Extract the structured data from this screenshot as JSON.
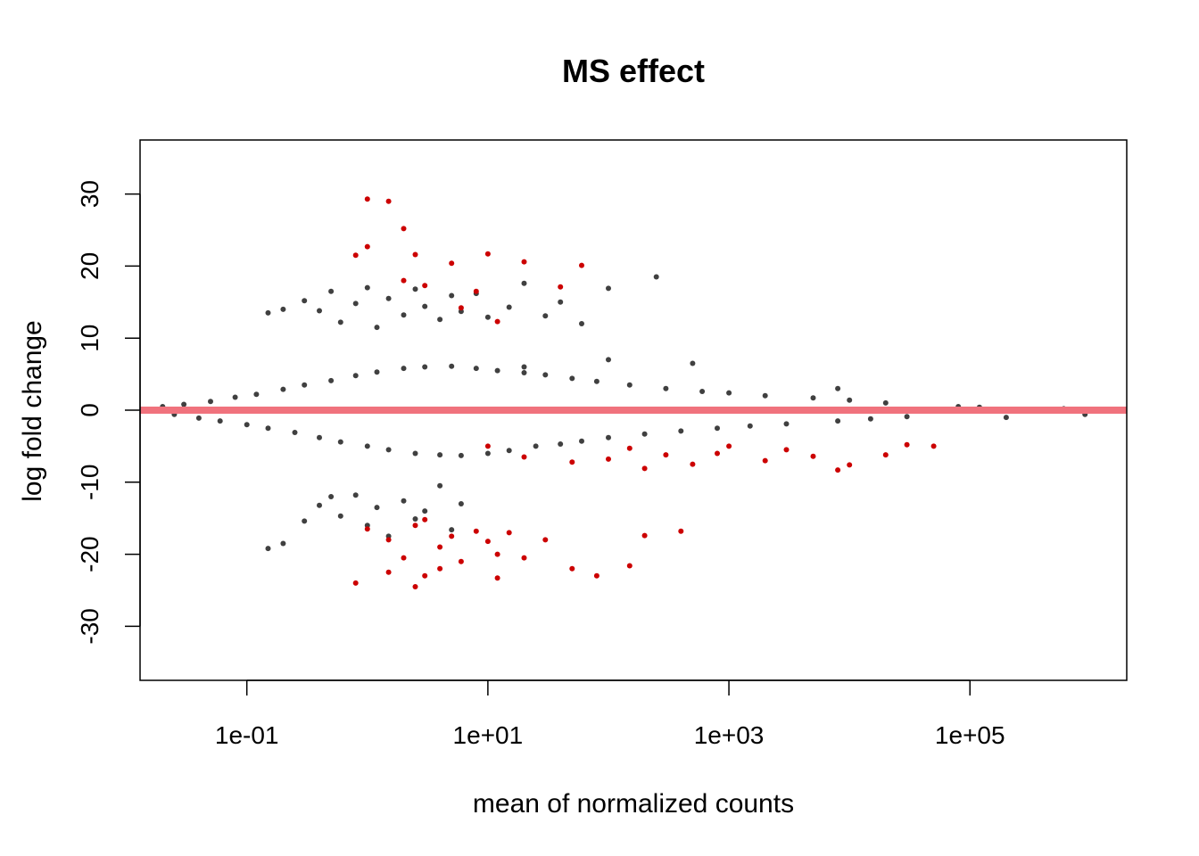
{
  "chart_data": {
    "type": "scatter",
    "title": "MS effect",
    "xlabel": "mean of normalized counts",
    "ylabel": "log fold change",
    "x_scale": "log10",
    "xlim": [
      0.013,
      2000000
    ],
    "ylim": [
      -37.5,
      37.5
    ],
    "x_ticks": [
      {
        "value": 0.1,
        "label": "1e-01"
      },
      {
        "value": 10,
        "label": "1e+01"
      },
      {
        "value": 1000,
        "label": "1e+03"
      },
      {
        "value": 100000,
        "label": "1e+05"
      }
    ],
    "y_ticks": [
      {
        "value": -30,
        "label": "-30"
      },
      {
        "value": -20,
        "label": "-20"
      },
      {
        "value": -10,
        "label": "-10"
      },
      {
        "value": 0,
        "label": "0"
      },
      {
        "value": 10,
        "label": "10"
      },
      {
        "value": 20,
        "label": "20"
      },
      {
        "value": 30,
        "label": "30"
      }
    ],
    "reference_line": {
      "y": 0,
      "color": "#f0727d"
    },
    "grid": false,
    "colors": {
      "not_significant": "#404040",
      "significant": "#cc0000"
    },
    "series": [
      {
        "color": "#404040",
        "points": [
          [
            0.02,
            0.5
          ],
          [
            0.025,
            -0.6
          ],
          [
            0.03,
            0.8
          ],
          [
            0.04,
            -1.1
          ],
          [
            0.05,
            1.2
          ],
          [
            0.06,
            -1.5
          ],
          [
            0.08,
            1.8
          ],
          [
            0.1,
            -2.0
          ],
          [
            0.12,
            2.2
          ],
          [
            0.15,
            -2.5
          ],
          [
            0.2,
            2.9
          ],
          [
            0.25,
            -3.1
          ],
          [
            0.3,
            3.5
          ],
          [
            0.4,
            -3.8
          ],
          [
            0.5,
            4.1
          ],
          [
            0.6,
            -4.4
          ],
          [
            0.8,
            4.8
          ],
          [
            1.0,
            -5.0
          ],
          [
            1.2,
            5.3
          ],
          [
            1.5,
            -5.5
          ],
          [
            2.0,
            5.8
          ],
          [
            2.5,
            -6.0
          ],
          [
            3.0,
            6.0
          ],
          [
            4.0,
            -6.2
          ],
          [
            5.0,
            6.1
          ],
          [
            6.0,
            -6.3
          ],
          [
            8.0,
            5.8
          ],
          [
            10,
            -6.0
          ],
          [
            12,
            5.5
          ],
          [
            15,
            -5.6
          ],
          [
            20,
            5.2
          ],
          [
            25,
            -5.0
          ],
          [
            30,
            4.9
          ],
          [
            40,
            -4.7
          ],
          [
            50,
            4.4
          ],
          [
            60,
            -4.3
          ],
          [
            80,
            4.0
          ],
          [
            100,
            -3.8
          ],
          [
            150,
            3.5
          ],
          [
            200,
            -3.3
          ],
          [
            300,
            3.0
          ],
          [
            400,
            -2.9
          ],
          [
            600,
            2.6
          ],
          [
            800,
            -2.5
          ],
          [
            1000,
            2.4
          ],
          [
            1500,
            -2.2
          ],
          [
            2000,
            2.0
          ],
          [
            3000,
            -1.9
          ],
          [
            5000,
            1.7
          ],
          [
            8000,
            -1.5
          ],
          [
            10000,
            1.4
          ],
          [
            15000,
            -1.2
          ],
          [
            20000,
            1.0
          ],
          [
            30000,
            -0.9
          ],
          [
            0.15,
            13.5
          ],
          [
            0.2,
            14.0
          ],
          [
            0.3,
            15.2
          ],
          [
            0.4,
            13.8
          ],
          [
            0.5,
            16.5
          ],
          [
            0.6,
            12.2
          ],
          [
            0.8,
            14.8
          ],
          [
            1.0,
            17.0
          ],
          [
            1.2,
            11.5
          ],
          [
            1.5,
            15.5
          ],
          [
            2.0,
            13.2
          ],
          [
            2.5,
            16.8
          ],
          [
            3.0,
            14.4
          ],
          [
            4.0,
            12.6
          ],
          [
            5.0,
            15.9
          ],
          [
            6.0,
            13.7
          ],
          [
            8.0,
            16.2
          ],
          [
            10,
            12.9
          ],
          [
            15,
            14.3
          ],
          [
            20,
            17.6
          ],
          [
            30,
            13.1
          ],
          [
            40,
            15.0
          ],
          [
            60,
            12.0
          ],
          [
            100,
            16.9
          ],
          [
            250,
            18.5
          ],
          [
            0.15,
            -19.2
          ],
          [
            0.2,
            -18.5
          ],
          [
            0.3,
            -15.4
          ],
          [
            0.4,
            -13.2
          ],
          [
            0.5,
            -12.0
          ],
          [
            0.6,
            -14.7
          ],
          [
            0.8,
            -11.8
          ],
          [
            1.0,
            -16.0
          ],
          [
            1.2,
            -13.5
          ],
          [
            1.5,
            -17.5
          ],
          [
            2.0,
            -12.6
          ],
          [
            2.5,
            -15.1
          ],
          [
            3.0,
            -14.0
          ],
          [
            4.0,
            -10.5
          ],
          [
            5.0,
            -16.6
          ],
          [
            6.0,
            -13.0
          ],
          [
            20,
            6.0
          ],
          [
            100,
            7.0
          ],
          [
            500,
            6.5
          ],
          [
            8000,
            3.0
          ],
          [
            80000,
            0.5
          ],
          [
            120000,
            0.4
          ],
          [
            200000,
            -1.0
          ],
          [
            600000,
            0.2
          ],
          [
            900000,
            -0.6
          ]
        ]
      },
      {
        "color": "#cc0000",
        "points": [
          [
            1.0,
            29.3
          ],
          [
            1.5,
            29.0
          ],
          [
            2.0,
            25.2
          ],
          [
            1.0,
            22.7
          ],
          [
            2.5,
            21.6
          ],
          [
            10,
            21.7
          ],
          [
            20,
            20.6
          ],
          [
            60,
            20.1
          ],
          [
            0.8,
            21.5
          ],
          [
            5.0,
            20.4
          ],
          [
            2.0,
            18.0
          ],
          [
            3.0,
            17.3
          ],
          [
            8.0,
            16.5
          ],
          [
            40,
            17.1
          ],
          [
            6.0,
            14.2
          ],
          [
            12,
            12.3
          ],
          [
            10,
            -5.0
          ],
          [
            20,
            -6.5
          ],
          [
            50,
            -7.2
          ],
          [
            100,
            -6.8
          ],
          [
            150,
            -5.3
          ],
          [
            200,
            -8.1
          ],
          [
            300,
            -6.2
          ],
          [
            500,
            -7.5
          ],
          [
            800,
            -6.0
          ],
          [
            1000,
            -5.0
          ],
          [
            2000,
            -7.0
          ],
          [
            3000,
            -5.5
          ],
          [
            5000,
            -6.4
          ],
          [
            8000,
            -8.3
          ],
          [
            10000,
            -7.6
          ],
          [
            20000,
            -6.2
          ],
          [
            30000,
            -4.8
          ],
          [
            50000,
            -5.0
          ],
          [
            1.0,
            -16.5
          ],
          [
            1.5,
            -18.0
          ],
          [
            2.0,
            -20.5
          ],
          [
            2.5,
            -16.0
          ],
          [
            3.0,
            -15.2
          ],
          [
            4.0,
            -19.0
          ],
          [
            5.0,
            -17.5
          ],
          [
            6.0,
            -21.0
          ],
          [
            8.0,
            -16.8
          ],
          [
            10,
            -18.2
          ],
          [
            12,
            -20.0
          ],
          [
            15,
            -17.0
          ],
          [
            20,
            -20.5
          ],
          [
            30,
            -18.0
          ],
          [
            50,
            -22.0
          ],
          [
            80,
            -23.0
          ],
          [
            150,
            -21.6
          ],
          [
            200,
            -17.4
          ],
          [
            400,
            -16.8
          ],
          [
            0.8,
            -24.0
          ],
          [
            1.5,
            -22.5
          ],
          [
            2.5,
            -24.5
          ],
          [
            3.0,
            -23.0
          ],
          [
            4.0,
            -22.0
          ],
          [
            12,
            -23.3
          ]
        ]
      }
    ]
  }
}
